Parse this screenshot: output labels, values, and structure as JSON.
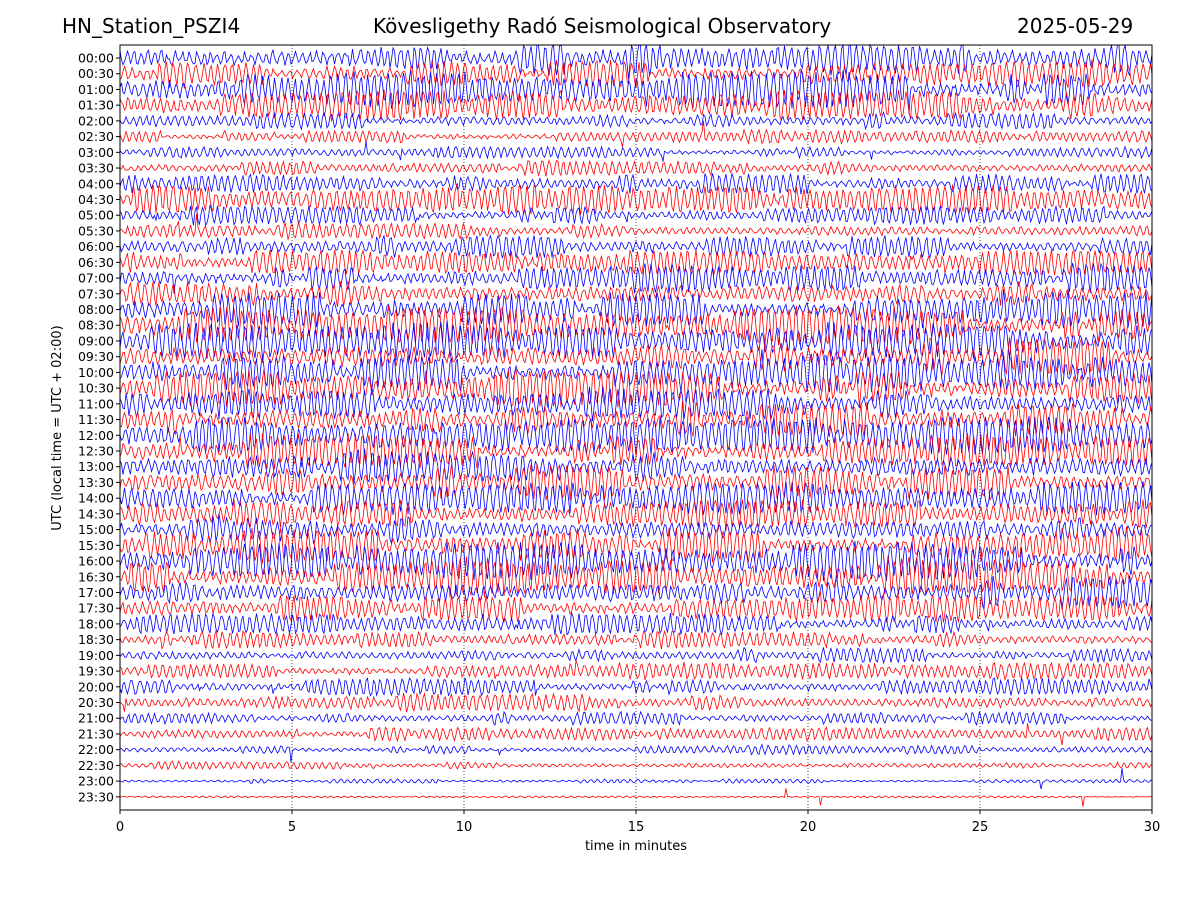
{
  "chart_data": {
    "type": "line",
    "title_left": "HN_Station_PSZI4",
    "title_center": "Kövesligethy Radó Seismological Observatory",
    "title_right": "2025-05-29",
    "xlabel": "time in minutes",
    "ylabel": "UTC (local time = UTC + 02:00)",
    "xlim": [
      0,
      30
    ],
    "x_ticks": [
      0,
      5,
      10,
      15,
      20,
      25,
      30
    ],
    "vertical_gridlines": "dotted at each 5-minute tick",
    "row_labels": [
      "00:00",
      "00:30",
      "01:00",
      "01:30",
      "02:00",
      "02:30",
      "03:00",
      "03:30",
      "04:00",
      "04:30",
      "05:00",
      "05:30",
      "06:00",
      "06:30",
      "07:00",
      "07:30",
      "08:00",
      "08:30",
      "09:00",
      "09:30",
      "10:00",
      "10:30",
      "11:00",
      "11:30",
      "12:00",
      "12:30",
      "13:00",
      "13:30",
      "14:00",
      "14:30",
      "15:00",
      "15:30",
      "16:00",
      "16:30",
      "17:00",
      "17:30",
      "18:00",
      "18:30",
      "19:00",
      "19:30",
      "20:00",
      "20:30",
      "21:00",
      "21:30",
      "22:00",
      "22:30",
      "23:00",
      "23:30"
    ],
    "row_amplitude": [
      1.0,
      0.75,
      1.0,
      0.85,
      0.45,
      0.35,
      0.3,
      0.4,
      0.55,
      0.8,
      0.5,
      0.45,
      0.6,
      0.65,
      0.75,
      0.8,
      0.95,
      1.0,
      1.0,
      1.0,
      1.0,
      1.0,
      0.9,
      0.95,
      1.0,
      0.9,
      0.9,
      0.95,
      0.85,
      0.8,
      0.85,
      0.95,
      1.0,
      1.0,
      0.9,
      0.75,
      0.55,
      0.45,
      0.4,
      0.45,
      0.45,
      0.5,
      0.35,
      0.35,
      0.25,
      0.22,
      0.12,
      0.05
    ],
    "series_colors": [
      "#0000ff",
      "#ff0000"
    ],
    "color_pattern": "alternating per row, starting blue"
  }
}
